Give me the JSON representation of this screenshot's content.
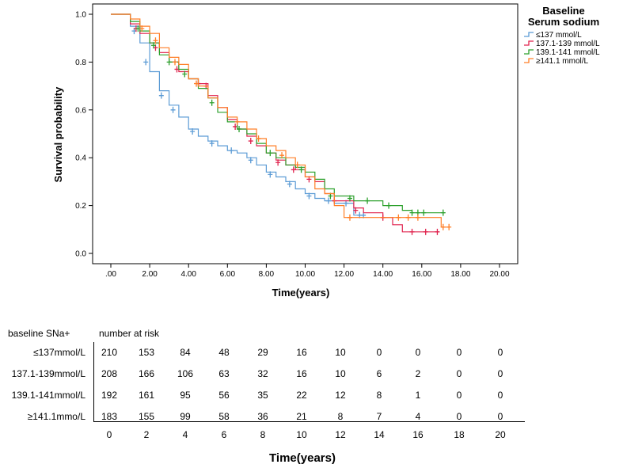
{
  "chart_data": {
    "type": "line",
    "title": "",
    "xlabel": "Time(years)",
    "ylabel": "Survival probability",
    "xlim": [
      0,
      20
    ],
    "ylim": [
      0,
      1
    ],
    "x_ticks": [
      ".00",
      "2.00",
      "4.00",
      "6.00",
      "8.00",
      "10.00",
      "12.00",
      "14.00",
      "16.00",
      "18.00",
      "20.00"
    ],
    "y_ticks": [
      "0.0",
      "0.2",
      "0.4",
      "0.6",
      "0.8",
      "1.0"
    ],
    "grid": false,
    "legend": {
      "title_line1": "Baseline",
      "title_line2": "Serum sodium",
      "position": "top-right"
    },
    "series": [
      {
        "name": "≤137 mmol/L",
        "color": "#5b9bd5",
        "points": [
          [
            0,
            1
          ],
          [
            0.6,
            1
          ],
          [
            1.0,
            0.95
          ],
          [
            1.5,
            0.88
          ],
          [
            2.0,
            0.76
          ],
          [
            2.5,
            0.68
          ],
          [
            3.0,
            0.62
          ],
          [
            3.5,
            0.57
          ],
          [
            4.0,
            0.52
          ],
          [
            4.5,
            0.49
          ],
          [
            5.0,
            0.47
          ],
          [
            5.5,
            0.45
          ],
          [
            6.0,
            0.43
          ],
          [
            6.5,
            0.42
          ],
          [
            7.0,
            0.4
          ],
          [
            7.5,
            0.37
          ],
          [
            8.0,
            0.34
          ],
          [
            8.5,
            0.32
          ],
          [
            9.0,
            0.3
          ],
          [
            9.5,
            0.27
          ],
          [
            10.0,
            0.25
          ],
          [
            10.5,
            0.23
          ],
          [
            11.0,
            0.22
          ],
          [
            11.5,
            0.21
          ],
          [
            12.0,
            0.21
          ],
          [
            12.5,
            0.16
          ],
          [
            13.0,
            0.16
          ],
          [
            13.1,
            0.16
          ]
        ],
        "censor": [
          [
            1.2,
            0.93
          ],
          [
            1.8,
            0.8
          ],
          [
            2.6,
            0.66
          ],
          [
            3.2,
            0.6
          ],
          [
            4.2,
            0.51
          ],
          [
            5.2,
            0.46
          ],
          [
            6.2,
            0.43
          ],
          [
            7.2,
            0.39
          ],
          [
            8.2,
            0.33
          ],
          [
            9.2,
            0.29
          ],
          [
            10.2,
            0.24
          ],
          [
            11.2,
            0.22
          ],
          [
            12.1,
            0.21
          ],
          [
            12.8,
            0.16
          ],
          [
            13.0,
            0.16
          ]
        ]
      },
      {
        "name": "137.1-139 mmol/L",
        "color": "#e0234e",
        "points": [
          [
            0,
            1
          ],
          [
            0.6,
            1
          ],
          [
            1.0,
            0.96
          ],
          [
            1.5,
            0.92
          ],
          [
            2.0,
            0.88
          ],
          [
            2.5,
            0.84
          ],
          [
            3.0,
            0.8
          ],
          [
            3.5,
            0.76
          ],
          [
            4.0,
            0.73
          ],
          [
            4.5,
            0.71
          ],
          [
            5.0,
            0.66
          ],
          [
            5.5,
            0.61
          ],
          [
            6.0,
            0.56
          ],
          [
            6.5,
            0.52
          ],
          [
            7.0,
            0.49
          ],
          [
            7.5,
            0.45
          ],
          [
            8.0,
            0.42
          ],
          [
            8.5,
            0.39
          ],
          [
            9.0,
            0.37
          ],
          [
            9.5,
            0.35
          ],
          [
            10.0,
            0.32
          ],
          [
            10.5,
            0.3
          ],
          [
            11.0,
            0.25
          ],
          [
            11.5,
            0.22
          ],
          [
            12.0,
            0.22
          ],
          [
            12.5,
            0.19
          ],
          [
            13.0,
            0.17
          ],
          [
            14.0,
            0.15
          ],
          [
            14.5,
            0.12
          ],
          [
            15.0,
            0.09
          ],
          [
            16.0,
            0.09
          ],
          [
            16.9,
            0.09
          ]
        ],
        "censor": [
          [
            1.3,
            0.94
          ],
          [
            2.3,
            0.86
          ],
          [
            3.4,
            0.77
          ],
          [
            4.5,
            0.71
          ],
          [
            4.9,
            0.7
          ],
          [
            6.4,
            0.53
          ],
          [
            7.2,
            0.47
          ],
          [
            8.6,
            0.38
          ],
          [
            9.4,
            0.35
          ],
          [
            10.2,
            0.31
          ],
          [
            11.5,
            0.22
          ],
          [
            12.6,
            0.18
          ],
          [
            14.0,
            0.15
          ],
          [
            15.5,
            0.09
          ],
          [
            16.2,
            0.09
          ],
          [
            16.8,
            0.09
          ]
        ]
      },
      {
        "name": "139.1-141 mmol/L",
        "color": "#2ca02c",
        "points": [
          [
            0,
            1
          ],
          [
            0.6,
            1
          ],
          [
            1.0,
            0.97
          ],
          [
            1.5,
            0.93
          ],
          [
            2.0,
            0.88
          ],
          [
            2.5,
            0.83
          ],
          [
            3.0,
            0.8
          ],
          [
            3.5,
            0.77
          ],
          [
            4.0,
            0.73
          ],
          [
            4.5,
            0.69
          ],
          [
            5.0,
            0.65
          ],
          [
            5.5,
            0.59
          ],
          [
            6.0,
            0.55
          ],
          [
            6.5,
            0.52
          ],
          [
            7.0,
            0.5
          ],
          [
            7.5,
            0.46
          ],
          [
            8.0,
            0.42
          ],
          [
            8.5,
            0.4
          ],
          [
            9.0,
            0.37
          ],
          [
            9.5,
            0.36
          ],
          [
            10.0,
            0.34
          ],
          [
            10.5,
            0.31
          ],
          [
            11.0,
            0.27
          ],
          [
            11.5,
            0.24
          ],
          [
            12.0,
            0.24
          ],
          [
            12.5,
            0.22
          ],
          [
            13.0,
            0.22
          ],
          [
            14.0,
            0.2
          ],
          [
            15.0,
            0.18
          ],
          [
            15.5,
            0.17
          ],
          [
            17.2,
            0.17
          ]
        ],
        "censor": [
          [
            1.4,
            0.94
          ],
          [
            2.2,
            0.87
          ],
          [
            3.0,
            0.8
          ],
          [
            3.8,
            0.75
          ],
          [
            5.2,
            0.63
          ],
          [
            6.6,
            0.52
          ],
          [
            8.2,
            0.42
          ],
          [
            9.8,
            0.35
          ],
          [
            11.3,
            0.24
          ],
          [
            12.3,
            0.23
          ],
          [
            13.2,
            0.22
          ],
          [
            14.3,
            0.2
          ],
          [
            15.5,
            0.17
          ],
          [
            15.8,
            0.17
          ],
          [
            16.1,
            0.17
          ],
          [
            17.1,
            0.17
          ]
        ]
      },
      {
        "name": "≥141.1 mmol/L",
        "color": "#ff7f27",
        "points": [
          [
            0,
            1
          ],
          [
            0.6,
            1
          ],
          [
            1.0,
            0.98
          ],
          [
            1.5,
            0.95
          ],
          [
            2.0,
            0.92
          ],
          [
            2.5,
            0.86
          ],
          [
            3.0,
            0.82
          ],
          [
            3.5,
            0.79
          ],
          [
            4.0,
            0.73
          ],
          [
            4.5,
            0.7
          ],
          [
            5.0,
            0.65
          ],
          [
            5.5,
            0.61
          ],
          [
            6.0,
            0.57
          ],
          [
            6.5,
            0.55
          ],
          [
            7.0,
            0.52
          ],
          [
            7.5,
            0.48
          ],
          [
            8.0,
            0.45
          ],
          [
            8.5,
            0.43
          ],
          [
            9.0,
            0.4
          ],
          [
            9.5,
            0.37
          ],
          [
            10.0,
            0.32
          ],
          [
            10.5,
            0.27
          ],
          [
            11.0,
            0.25
          ],
          [
            11.5,
            0.2
          ],
          [
            12.0,
            0.15
          ],
          [
            13.0,
            0.15
          ],
          [
            14.0,
            0.15
          ],
          [
            15.0,
            0.15
          ],
          [
            16.5,
            0.15
          ],
          [
            17.0,
            0.11
          ],
          [
            17.4,
            0.11
          ]
        ],
        "censor": [
          [
            1.6,
            0.94
          ],
          [
            2.3,
            0.89
          ],
          [
            3.3,
            0.8
          ],
          [
            4.4,
            0.71
          ],
          [
            6.5,
            0.55
          ],
          [
            7.6,
            0.48
          ],
          [
            8.8,
            0.41
          ],
          [
            9.6,
            0.37
          ],
          [
            12.3,
            0.15
          ],
          [
            14.8,
            0.15
          ],
          [
            15.3,
            0.15
          ],
          [
            15.8,
            0.15
          ],
          [
            17.1,
            0.11
          ],
          [
            17.4,
            0.11
          ]
        ]
      }
    ],
    "risk_table": {
      "row_header": "baseline SNa+",
      "col_header": "number at risk",
      "times": [
        "0",
        "2",
        "4",
        "6",
        "8",
        "10",
        "12",
        "14",
        "16",
        "18",
        "20"
      ],
      "rows": [
        {
          "label": "≤137mmol/L",
          "values": [
            "210",
            "153",
            "84",
            "48",
            "29",
            "16",
            "10",
            "0",
            "0",
            "0",
            "0"
          ]
        },
        {
          "label": "137.1-139mmol/L",
          "values": [
            "208",
            "166",
            "106",
            "63",
            "32",
            "16",
            "10",
            "6",
            "2",
            "0",
            "0"
          ]
        },
        {
          "label": "139.1-141mmol/L",
          "values": [
            "192",
            "161",
            "95",
            "56",
            "35",
            "22",
            "12",
            "8",
            "1",
            "0",
            "0"
          ]
        },
        {
          "label": "≥141.1mmo/L",
          "values": [
            "183",
            "155",
            "99",
            "58",
            "36",
            "21",
            "8",
            "7",
            "4",
            "0",
            "0"
          ]
        }
      ],
      "xlabel": "Time(years)"
    }
  }
}
